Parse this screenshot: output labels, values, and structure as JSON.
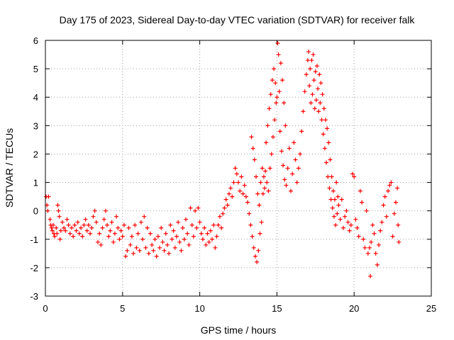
{
  "chart_data": {
    "type": "scatter",
    "title": "Day 175 of 2023, Sidereal Day-to-day VTEC variation (SDTVAR) for receiver falk",
    "xlabel": "GPS time / hours",
    "ylabel": "SDTVAR / TECUs",
    "xlim": [
      0,
      25
    ],
    "ylim": [
      -3,
      6
    ],
    "grid": true,
    "marker": "plus",
    "color": "#ff0000",
    "x_ticks": [
      0,
      5,
      10,
      15,
      20,
      25
    ],
    "y_ticks": [
      -3,
      -2,
      -1,
      0,
      1,
      2,
      3,
      4,
      5,
      6
    ],
    "series": [
      {
        "name": "SDTVAR",
        "points": [
          [
            0.05,
            0.5
          ],
          [
            0.1,
            0.2
          ],
          [
            0.15,
            0.0
          ],
          [
            0.2,
            0.5
          ],
          [
            0.3,
            -0.3
          ],
          [
            0.35,
            -0.5
          ],
          [
            0.4,
            -0.6
          ],
          [
            0.45,
            -0.7
          ],
          [
            0.5,
            -0.5
          ],
          [
            0.55,
            -0.8
          ],
          [
            0.6,
            -0.9
          ],
          [
            0.7,
            -0.6
          ],
          [
            0.75,
            -0.8
          ],
          [
            0.8,
            0.2
          ],
          [
            0.85,
            0.0
          ],
          [
            0.9,
            -0.2
          ],
          [
            0.95,
            -1.0
          ],
          [
            1.0,
            -0.7
          ],
          [
            1.1,
            -0.4
          ],
          [
            1.2,
            -0.6
          ],
          [
            1.3,
            -0.7
          ],
          [
            1.4,
            -0.3
          ],
          [
            1.5,
            -0.5
          ],
          [
            1.6,
            -0.8
          ],
          [
            1.7,
            -0.6
          ],
          [
            1.8,
            -0.9
          ],
          [
            1.9,
            -0.5
          ],
          [
            2.0,
            -0.7
          ],
          [
            2.1,
            -0.4
          ],
          [
            2.2,
            -0.8
          ],
          [
            2.3,
            -0.6
          ],
          [
            2.4,
            -0.9
          ],
          [
            2.5,
            -0.5
          ],
          [
            2.6,
            -0.3
          ],
          [
            2.7,
            -0.7
          ],
          [
            2.8,
            -0.5
          ],
          [
            2.9,
            -0.8
          ],
          [
            3.0,
            -0.6
          ],
          [
            3.1,
            -0.2
          ],
          [
            3.2,
            0.0
          ],
          [
            3.3,
            -0.4
          ],
          [
            3.4,
            -1.1
          ],
          [
            3.5,
            -0.8
          ],
          [
            3.6,
            -1.2
          ],
          [
            3.7,
            -0.6
          ],
          [
            3.8,
            -0.3
          ],
          [
            3.9,
            0.0
          ],
          [
            4.0,
            -0.5
          ],
          [
            4.1,
            -0.9
          ],
          [
            4.2,
            -0.7
          ],
          [
            4.3,
            -0.4
          ],
          [
            4.4,
            -1.1
          ],
          [
            4.5,
            -0.8
          ],
          [
            4.6,
            -0.2
          ],
          [
            4.7,
            -0.6
          ],
          [
            4.8,
            -1.0
          ],
          [
            4.9,
            -0.7
          ],
          [
            5.0,
            -0.9
          ],
          [
            5.1,
            -0.5
          ],
          [
            5.2,
            -1.6
          ],
          [
            5.3,
            -1.4
          ],
          [
            5.4,
            -0.6
          ],
          [
            5.5,
            -1.2
          ],
          [
            5.6,
            -0.9
          ],
          [
            5.7,
            -1.5
          ],
          [
            5.8,
            -0.5
          ],
          [
            5.9,
            -1.3
          ],
          [
            6.0,
            -0.8
          ],
          [
            6.1,
            -1.4
          ],
          [
            6.2,
            -0.4
          ],
          [
            6.3,
            -1.0
          ],
          [
            6.4,
            -0.2
          ],
          [
            6.5,
            -1.3
          ],
          [
            6.6,
            -0.6
          ],
          [
            6.7,
            -1.5
          ],
          [
            6.8,
            -0.8
          ],
          [
            6.9,
            -1.2
          ],
          [
            7.0,
            -1.4
          ],
          [
            7.1,
            -1.0
          ],
          [
            7.2,
            -1.6
          ],
          [
            7.3,
            -0.9
          ],
          [
            7.4,
            -1.3
          ],
          [
            7.5,
            -0.6
          ],
          [
            7.6,
            -1.1
          ],
          [
            7.7,
            -1.4
          ],
          [
            7.8,
            -0.8
          ],
          [
            7.9,
            -1.2
          ],
          [
            8.0,
            -1.5
          ],
          [
            8.1,
            -0.5
          ],
          [
            8.2,
            -1.0
          ],
          [
            8.3,
            -0.7
          ],
          [
            8.4,
            -1.3
          ],
          [
            8.5,
            -0.9
          ],
          [
            8.6,
            -0.4
          ],
          [
            8.7,
            -1.1
          ],
          [
            8.8,
            -1.4
          ],
          [
            8.9,
            -0.6
          ],
          [
            9.0,
            -1.0
          ],
          [
            9.1,
            -0.3
          ],
          [
            9.2,
            -0.8
          ],
          [
            9.3,
            -1.2
          ],
          [
            9.4,
            0.1
          ],
          [
            9.5,
            -0.5
          ],
          [
            9.6,
            -0.9
          ],
          [
            9.7,
            0.0
          ],
          [
            9.8,
            -0.6
          ],
          [
            9.9,
            0.1
          ],
          [
            10.0,
            -0.4
          ],
          [
            10.1,
            -0.8
          ],
          [
            10.2,
            -1.0
          ],
          [
            10.3,
            -0.6
          ],
          [
            10.4,
            -1.2
          ],
          [
            10.5,
            -0.8
          ],
          [
            10.6,
            -1.1
          ],
          [
            10.7,
            -0.7
          ],
          [
            10.8,
            -1.0
          ],
          [
            10.9,
            -0.5
          ],
          [
            11.0,
            -1.3
          ],
          [
            11.1,
            -0.9
          ],
          [
            11.2,
            -0.5
          ],
          [
            11.3,
            -0.2
          ],
          [
            11.4,
            -0.6
          ],
          [
            11.5,
            -0.1
          ],
          [
            11.6,
            0.1
          ],
          [
            11.7,
            0.4
          ],
          [
            11.8,
            0.2
          ],
          [
            11.9,
            0.6
          ],
          [
            12.0,
            0.8
          ],
          [
            12.1,
            0.5
          ],
          [
            12.2,
            1.0
          ],
          [
            12.3,
            1.5
          ],
          [
            12.4,
            1.3
          ],
          [
            12.5,
            1.0
          ],
          [
            12.6,
            0.7
          ],
          [
            12.7,
            1.2
          ],
          [
            12.8,
            0.6
          ],
          [
            12.9,
            0.9
          ],
          [
            13.0,
            0.5
          ],
          [
            13.1,
            0.3
          ],
          [
            13.2,
            -0.1
          ],
          [
            13.3,
            -0.5
          ],
          [
            13.35,
            2.6
          ],
          [
            13.4,
            -0.9
          ],
          [
            13.45,
            2.2
          ],
          [
            13.5,
            -1.3
          ],
          [
            13.55,
            1.8
          ],
          [
            13.6,
            -1.6
          ],
          [
            13.65,
            1.2
          ],
          [
            13.7,
            -1.8
          ],
          [
            13.75,
            0.6
          ],
          [
            13.8,
            -1.4
          ],
          [
            13.85,
            0.2
          ],
          [
            13.9,
            -0.8
          ],
          [
            13.95,
            1.0
          ],
          [
            14.0,
            -0.4
          ],
          [
            14.05,
            1.5
          ],
          [
            14.1,
            0.6
          ],
          [
            14.15,
            1.2
          ],
          [
            14.2,
            0.8
          ],
          [
            14.25,
            1.4
          ],
          [
            14.3,
            2.4
          ],
          [
            14.35,
            1.0
          ],
          [
            14.4,
            3.0
          ],
          [
            14.45,
            0.7
          ],
          [
            14.5,
            3.6
          ],
          [
            14.55,
            1.5
          ],
          [
            14.6,
            4.1
          ],
          [
            14.65,
            2.0
          ],
          [
            14.7,
            4.6
          ],
          [
            14.75,
            2.6
          ],
          [
            14.8,
            5.0
          ],
          [
            14.85,
            3.2
          ],
          [
            14.9,
            4.5
          ],
          [
            14.95,
            3.8
          ],
          [
            15.0,
            4.0
          ],
          [
            15.05,
            5.9
          ],
          [
            15.1,
            5.5
          ],
          [
            15.15,
            4.2
          ],
          [
            15.2,
            2.8
          ],
          [
            15.25,
            5.2
          ],
          [
            15.3,
            2.1
          ],
          [
            15.35,
            4.6
          ],
          [
            15.4,
            1.6
          ],
          [
            15.45,
            3.8
          ],
          [
            15.5,
            1.1
          ],
          [
            15.55,
            3.0
          ],
          [
            15.6,
            0.9
          ],
          [
            15.7,
            1.5
          ],
          [
            15.8,
            2.2
          ],
          [
            15.9,
            0.7
          ],
          [
            16.0,
            1.3
          ],
          [
            16.1,
            2.4
          ],
          [
            16.2,
            1.8
          ],
          [
            16.3,
            1.0
          ],
          [
            16.4,
            1.5
          ],
          [
            16.5,
            2.0
          ],
          [
            16.6,
            2.8
          ],
          [
            16.7,
            3.5
          ],
          [
            16.8,
            4.2
          ],
          [
            16.9,
            4.8
          ],
          [
            17.0,
            5.3
          ],
          [
            17.05,
            5.6
          ],
          [
            17.1,
            4.4
          ],
          [
            17.15,
            5.0
          ],
          [
            17.2,
            3.8
          ],
          [
            17.25,
            5.3
          ],
          [
            17.3,
            4.1
          ],
          [
            17.35,
            5.5
          ],
          [
            17.4,
            4.6
          ],
          [
            17.45,
            3.6
          ],
          [
            17.5,
            4.9
          ],
          [
            17.55,
            3.9
          ],
          [
            17.6,
            5.1
          ],
          [
            17.65,
            4.3
          ],
          [
            17.7,
            3.5
          ],
          [
            17.75,
            4.8
          ],
          [
            17.8,
            3.8
          ],
          [
            17.85,
            4.5
          ],
          [
            17.9,
            3.2
          ],
          [
            17.95,
            4.1
          ],
          [
            18.0,
            2.7
          ],
          [
            18.05,
            3.6
          ],
          [
            18.1,
            2.2
          ],
          [
            18.15,
            3.2
          ],
          [
            18.2,
            1.7
          ],
          [
            18.25,
            2.9
          ],
          [
            18.3,
            1.2
          ],
          [
            18.35,
            2.4
          ],
          [
            18.4,
            0.8
          ],
          [
            18.45,
            1.8
          ],
          [
            18.5,
            0.4
          ],
          [
            18.55,
            1.2
          ],
          [
            18.6,
            0.1
          ],
          [
            18.65,
            0.7
          ],
          [
            18.7,
            -0.2
          ],
          [
            18.75,
            0.4
          ],
          [
            18.8,
            -0.5
          ],
          [
            18.85,
            1.0
          ],
          [
            18.9,
            -0.1
          ],
          [
            18.95,
            0.5
          ],
          [
            19.0,
            0.2
          ],
          [
            19.1,
            -0.3
          ],
          [
            19.2,
            0.4
          ],
          [
            19.3,
            -0.6
          ],
          [
            19.4,
            -0.2
          ],
          [
            19.5,
            0.0
          ],
          [
            19.6,
            -0.4
          ],
          [
            19.7,
            -0.7
          ],
          [
            19.8,
            -0.5
          ],
          [
            19.9,
            1.3
          ],
          [
            20.0,
            1.2
          ],
          [
            20.1,
            -0.3
          ],
          [
            20.2,
            -0.6
          ],
          [
            20.3,
            -0.9
          ],
          [
            20.4,
            0.7
          ],
          [
            20.5,
            0.3
          ],
          [
            20.6,
            -1.0
          ],
          [
            20.7,
            -1.3
          ],
          [
            20.8,
            0.0
          ],
          [
            20.9,
            -1.5
          ],
          [
            21.0,
            -1.3
          ],
          [
            21.05,
            -2.3
          ],
          [
            21.1,
            -1.1
          ],
          [
            21.2,
            -0.5
          ],
          [
            21.3,
            -0.8
          ],
          [
            21.4,
            -1.5
          ],
          [
            21.5,
            -1.9
          ],
          [
            21.6,
            -1.2
          ],
          [
            21.7,
            -0.7
          ],
          [
            21.8,
            -0.4
          ],
          [
            21.9,
            0.2
          ],
          [
            22.0,
            0.5
          ],
          [
            22.1,
            -0.2
          ],
          [
            22.2,
            0.7
          ],
          [
            22.3,
            0.9
          ],
          [
            22.4,
            1.0
          ],
          [
            22.5,
            -0.9
          ],
          [
            22.6,
            -0.1
          ],
          [
            22.7,
            0.3
          ],
          [
            22.8,
            0.8
          ],
          [
            22.85,
            -0.5
          ],
          [
            22.9,
            -1.1
          ]
        ]
      }
    ]
  }
}
